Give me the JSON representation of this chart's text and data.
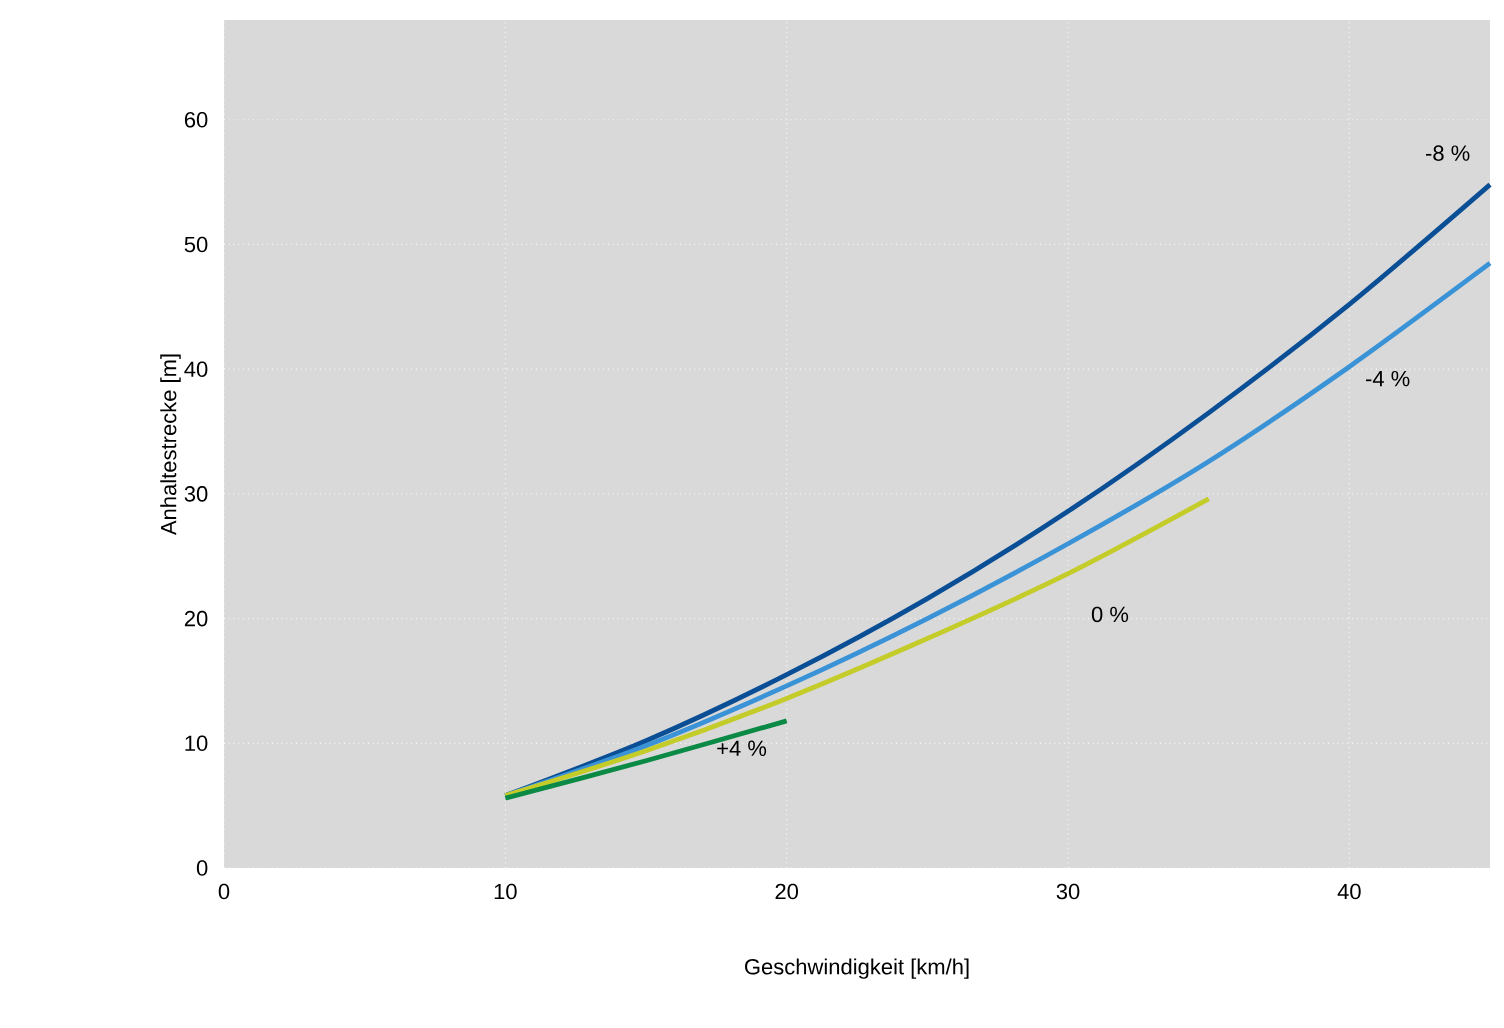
{
  "chart_data": {
    "type": "line",
    "xlabel": "Geschwindigkeit [km/h]",
    "ylabel": "Anhaltestrecke [m]",
    "xlim": [
      0,
      45
    ],
    "ylim": [
      0,
      68
    ],
    "xticks": [
      0,
      10,
      20,
      30,
      40
    ],
    "yticks": [
      0,
      10,
      20,
      30,
      40,
      50,
      60
    ],
    "grid": true,
    "marker": "none",
    "line_style": "solid",
    "series": [
      {
        "name": "-8 %",
        "color": "#0a4f96",
        "x": [
          10,
          15,
          20,
          25,
          30,
          35,
          40,
          45
        ],
        "values": [
          5.8,
          10.2,
          15.5,
          21.6,
          28.6,
          36.5,
          45.2,
          54.8
        ]
      },
      {
        "name": "-4 %",
        "color": "#3a93d6",
        "x": [
          10,
          15,
          20,
          25,
          30,
          35,
          40,
          45
        ],
        "values": [
          5.8,
          9.8,
          14.6,
          20.0,
          26.0,
          32.6,
          40.2,
          48.5
        ]
      },
      {
        "name": "0 %",
        "color": "#c4cc2a",
        "x": [
          10,
          15,
          20,
          25,
          30,
          35
        ],
        "values": [
          5.8,
          9.4,
          13.6,
          18.4,
          23.6,
          29.6
        ]
      },
      {
        "name": "+4 %",
        "color": "#0a8a45",
        "x": [
          10,
          15,
          20
        ],
        "values": [
          5.6,
          8.6,
          11.8
        ]
      }
    ]
  }
}
